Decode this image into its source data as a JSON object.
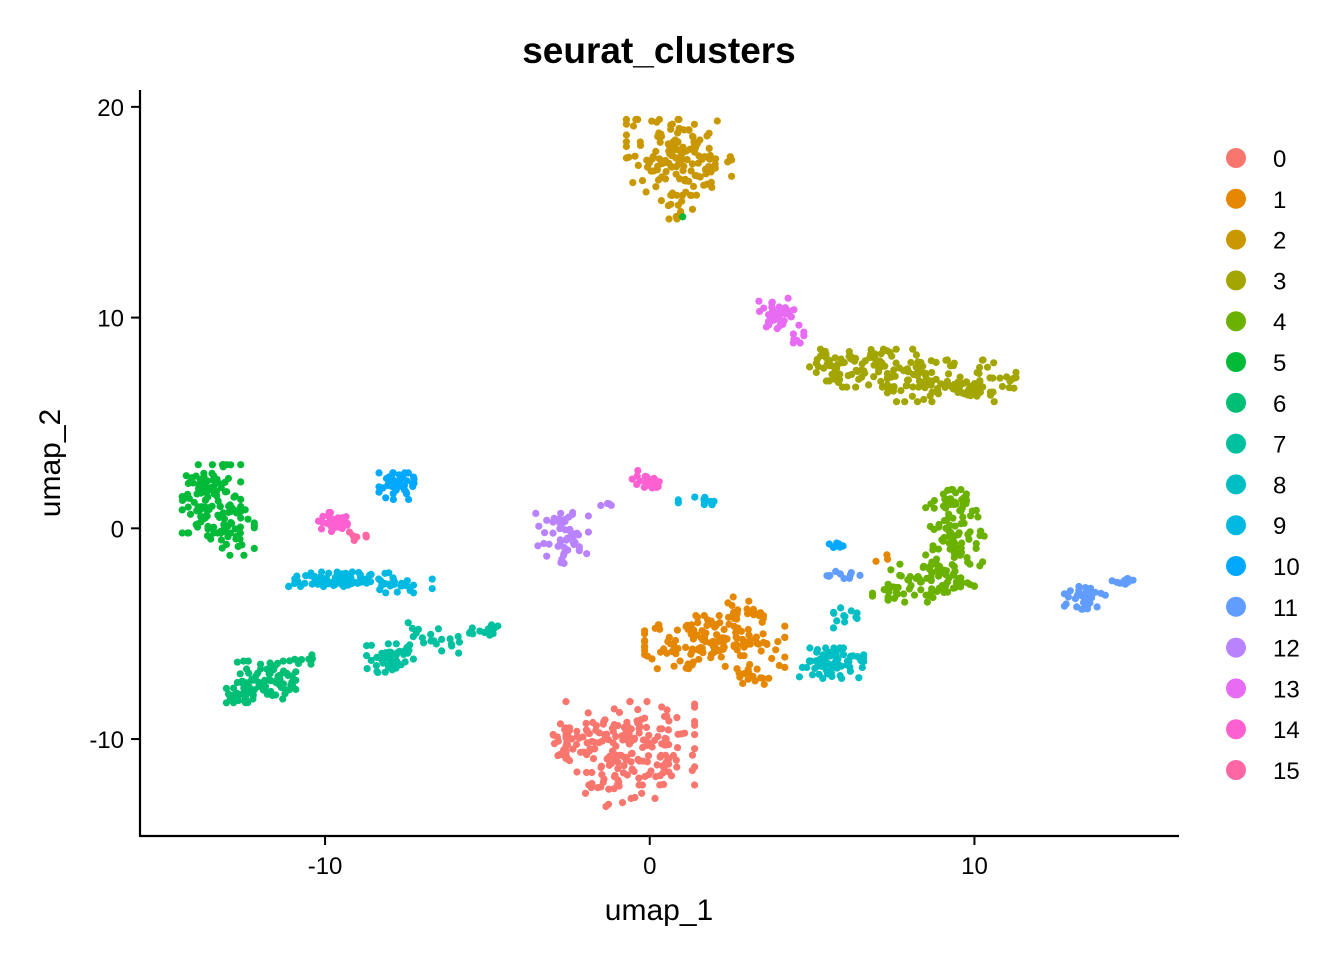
{
  "chart_data": {
    "type": "scatter",
    "title": "seurat_clusters",
    "xlabel": "umap_1",
    "ylabel": "umap_2",
    "xlim": [
      -15.7,
      16.3
    ],
    "ylim": [
      -14.6,
      20.8
    ],
    "x_ticks": [
      -10,
      0,
      10
    ],
    "x_tick_labels": [
      "-10",
      "0",
      "10"
    ],
    "y_ticks": [
      -10,
      0,
      10,
      20
    ],
    "y_tick_labels": [
      "-10",
      "0",
      "10",
      "20"
    ],
    "grid": false,
    "legend_position": "right",
    "series": [
      {
        "name": "0",
        "color": "#F8766D",
        "clusters": [
          {
            "cx": -0.6,
            "cy": -10.2,
            "sx": 1.1,
            "sy": 1.1,
            "n": 170
          },
          {
            "cx": -2.4,
            "cy": -10.0,
            "sx": 0.5,
            "sy": 0.6,
            "n": 30
          },
          {
            "cx": -0.9,
            "cy": -12.3,
            "sx": 0.6,
            "sy": 0.5,
            "n": 25
          }
        ]
      },
      {
        "name": "1",
        "color": "#E58700",
        "clusters": [
          {
            "cx": 2.0,
            "cy": -5.4,
            "sx": 1.2,
            "sy": 0.7,
            "n": 150
          },
          {
            "cx": 3.0,
            "cy": -3.8,
            "sx": 0.4,
            "sy": 0.3,
            "n": 20
          },
          {
            "cx": 3.4,
            "cy": -7.0,
            "sx": 0.4,
            "sy": 0.3,
            "n": 15
          },
          {
            "cx": 7.2,
            "cy": -1.3,
            "sx": 0.15,
            "sy": 0.15,
            "n": 3
          }
        ]
      },
      {
        "name": "2",
        "color": "#C99800",
        "clusters": [
          {
            "cx": 0.9,
            "cy": 17.6,
            "sx": 0.9,
            "sy": 1.0,
            "n": 150
          },
          {
            "cx": 0.9,
            "cy": 15.4,
            "sx": 0.3,
            "sy": 0.4,
            "n": 15
          }
        ]
      },
      {
        "name": "3",
        "color": "#A3A500",
        "clusters": [
          {
            "cx": 6.7,
            "cy": 7.6,
            "sx": 1.0,
            "sy": 0.5,
            "n": 90
          },
          {
            "cx": 9.3,
            "cy": 7.0,
            "sx": 1.1,
            "sy": 0.55,
            "n": 110
          },
          {
            "cx": 5.6,
            "cy": 7.9,
            "sx": 0.3,
            "sy": 0.25,
            "n": 12
          }
        ]
      },
      {
        "name": "4",
        "color": "#6BB100",
        "clusters": [
          {
            "cx": 9.4,
            "cy": -0.5,
            "sx": 0.5,
            "sy": 1.3,
            "n": 100
          },
          {
            "cx": 8.6,
            "cy": -2.6,
            "sx": 0.7,
            "sy": 0.5,
            "n": 60
          },
          {
            "cx": 9.3,
            "cy": 1.3,
            "sx": 0.3,
            "sy": 0.3,
            "n": 15
          },
          {
            "cx": 7.4,
            "cy": -3.0,
            "sx": 0.3,
            "sy": 0.3,
            "n": 8
          }
        ]
      },
      {
        "name": "5",
        "color": "#00BA38",
        "clusters": [
          {
            "cx": -13.5,
            "cy": 1.4,
            "sx": 0.5,
            "sy": 0.9,
            "n": 110
          },
          {
            "cx": -12.9,
            "cy": -0.2,
            "sx": 0.4,
            "sy": 0.6,
            "n": 35
          },
          {
            "cx": 1.0,
            "cy": 14.8,
            "sx": 0.05,
            "sy": 0.05,
            "n": 1
          }
        ]
      },
      {
        "name": "6",
        "color": "#00BF74",
        "clusters": [
          {
            "cx": -11.8,
            "cy": -7.2,
            "sx": 0.5,
            "sy": 0.5,
            "n": 80
          },
          {
            "cx": -12.5,
            "cy": -7.8,
            "sx": 0.3,
            "sy": 0.3,
            "n": 25
          },
          {
            "cx": -10.8,
            "cy": -6.3,
            "sx": 0.3,
            "sy": 0.2,
            "n": 10
          }
        ]
      },
      {
        "name": "7",
        "color": "#00C19F",
        "clusters": [
          {
            "cx": -8.0,
            "cy": -6.2,
            "sx": 0.4,
            "sy": 0.4,
            "n": 45
          },
          {
            "cx": -6.6,
            "cy": -5.2,
            "sx": 0.5,
            "sy": 0.4,
            "n": 20
          },
          {
            "cx": -5.2,
            "cy": -4.9,
            "sx": 0.5,
            "sy": 0.2,
            "n": 15
          }
        ]
      },
      {
        "name": "8",
        "color": "#00BFC4",
        "clusters": [
          {
            "cx": 5.6,
            "cy": -6.4,
            "sx": 0.55,
            "sy": 0.4,
            "n": 70
          },
          {
            "cx": 6.2,
            "cy": -4.3,
            "sx": 0.3,
            "sy": 0.3,
            "n": 12
          }
        ]
      },
      {
        "name": "9",
        "color": "#00B9E3",
        "clusters": [
          {
            "cx": -9.5,
            "cy": -2.4,
            "sx": 0.9,
            "sy": 0.2,
            "n": 75
          },
          {
            "cx": -7.6,
            "cy": -2.7,
            "sx": 0.5,
            "sy": 0.2,
            "n": 20
          },
          {
            "cx": 1.6,
            "cy": 1.3,
            "sx": 0.4,
            "sy": 0.1,
            "n": 12
          }
        ]
      },
      {
        "name": "10",
        "color": "#00A9FF",
        "clusters": [
          {
            "cx": -7.8,
            "cy": 2.0,
            "sx": 0.3,
            "sy": 0.35,
            "n": 45
          },
          {
            "cx": 5.8,
            "cy": -0.8,
            "sx": 0.15,
            "sy": 0.1,
            "n": 8
          }
        ]
      },
      {
        "name": "11",
        "color": "#619CFF",
        "clusters": [
          {
            "cx": 13.4,
            "cy": -3.3,
            "sx": 0.35,
            "sy": 0.3,
            "n": 35
          },
          {
            "cx": 14.6,
            "cy": -2.5,
            "sx": 0.2,
            "sy": 0.15,
            "n": 10
          },
          {
            "cx": 6.0,
            "cy": -2.2,
            "sx": 0.3,
            "sy": 0.1,
            "n": 10
          }
        ]
      },
      {
        "name": "12",
        "color": "#B983FF",
        "clusters": [
          {
            "cx": -2.7,
            "cy": -0.4,
            "sx": 0.45,
            "sy": 0.7,
            "n": 50
          },
          {
            "cx": -1.3,
            "cy": 1.1,
            "sx": 0.2,
            "sy": 0.15,
            "n": 4
          }
        ]
      },
      {
        "name": "13",
        "color": "#E76BF3",
        "clusters": [
          {
            "cx": 3.9,
            "cy": 10.2,
            "sx": 0.3,
            "sy": 0.4,
            "n": 35
          },
          {
            "cx": 4.5,
            "cy": 9.1,
            "sx": 0.15,
            "sy": 0.3,
            "n": 8
          }
        ]
      },
      {
        "name": "14",
        "color": "#FD61D1",
        "clusters": [
          {
            "cx": -9.7,
            "cy": 0.3,
            "sx": 0.3,
            "sy": 0.25,
            "n": 30
          },
          {
            "cx": 0.0,
            "cy": 2.2,
            "sx": 0.3,
            "sy": 0.3,
            "n": 25
          }
        ]
      },
      {
        "name": "15",
        "color": "#FF67A4",
        "clusters": [
          {
            "cx": -9.0,
            "cy": -0.4,
            "sx": 0.15,
            "sy": 0.2,
            "n": 6
          }
        ]
      }
    ]
  }
}
